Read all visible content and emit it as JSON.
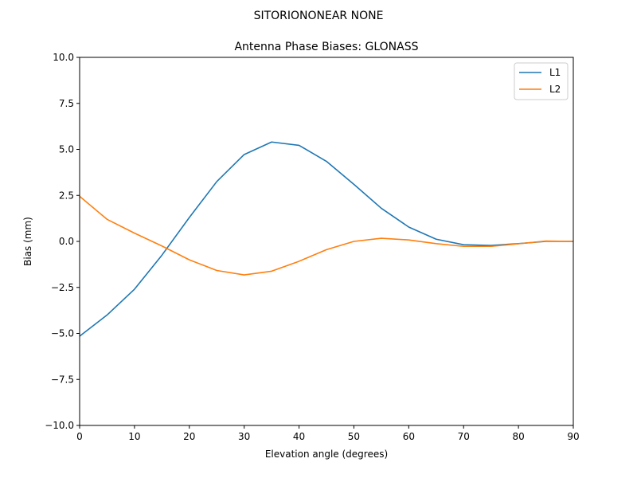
{
  "chart_data": {
    "type": "line",
    "suptitle": "SITORIONONEAR   NONE",
    "title": "Antenna Phase Biases: GLONASS",
    "xlabel": "Elevation angle (degrees)",
    "ylabel": "Bias (mm)",
    "xlim": [
      0,
      90
    ],
    "ylim": [
      -10,
      10
    ],
    "xticks": [
      0,
      10,
      20,
      30,
      40,
      50,
      60,
      70,
      80,
      90
    ],
    "xtick_labels": [
      "0",
      "10",
      "20",
      "30",
      "40",
      "50",
      "60",
      "70",
      "80",
      "90"
    ],
    "yticks": [
      -10,
      -7.5,
      -5,
      -2.5,
      0,
      2.5,
      5,
      7.5,
      10
    ],
    "ytick_labels": [
      "−10.0",
      "−7.5",
      "−5.0",
      "−2.5",
      "0.0",
      "2.5",
      "5.0",
      "7.5",
      "10.0"
    ],
    "grid": false,
    "legend_position": "top-right",
    "x": [
      0,
      5,
      10,
      15,
      20,
      25,
      30,
      35,
      40,
      45,
      50,
      55,
      60,
      65,
      70,
      75,
      80,
      85,
      90
    ],
    "series": [
      {
        "name": "L1",
        "color": "#1f77b4",
        "values": [
          -5.15,
          -4.0,
          -2.6,
          -0.75,
          1.3,
          3.25,
          4.72,
          5.4,
          5.22,
          4.35,
          3.1,
          1.8,
          0.78,
          0.12,
          -0.18,
          -0.22,
          -0.12,
          0.0,
          0.0
        ]
      },
      {
        "name": "L2",
        "color": "#ff7f0e",
        "values": [
          2.45,
          1.2,
          0.45,
          -0.25,
          -1.0,
          -1.58,
          -1.82,
          -1.62,
          -1.08,
          -0.45,
          0.0,
          0.17,
          0.08,
          -0.12,
          -0.27,
          -0.27,
          -0.13,
          0.02,
          0.0
        ]
      }
    ]
  }
}
